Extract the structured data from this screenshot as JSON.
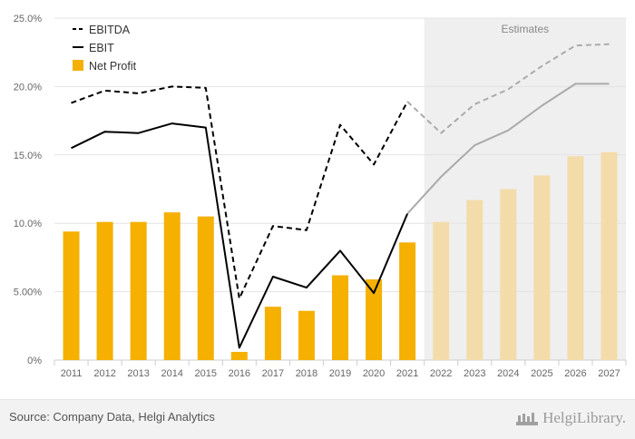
{
  "chart_data": {
    "type": "bar",
    "title": "",
    "xlabel": "",
    "ylabel": "",
    "categories": [
      "2011",
      "2012",
      "2013",
      "2014",
      "2015",
      "2016",
      "2017",
      "2018",
      "2019",
      "2020",
      "2021",
      "2022",
      "2023",
      "2024",
      "2025",
      "2026",
      "2027"
    ],
    "estimates_from_index": 11,
    "ylim": [
      0,
      25
    ],
    "yticks": [
      0,
      5,
      10,
      15,
      20,
      25
    ],
    "ytick_labels": [
      "0%",
      "5.00%",
      "10.0%",
      "15.0%",
      "20.0%",
      "25.0%"
    ],
    "grid": true,
    "legend_position": "top-left",
    "estimates_label": "Estimates",
    "series": [
      {
        "name": "EBITDA",
        "kind": "line",
        "style": "dashed",
        "color": "#000000",
        "estimate_color": "#aaaaaa",
        "values": [
          18.8,
          19.7,
          19.5,
          20.0,
          19.9,
          4.5,
          9.8,
          9.5,
          17.2,
          14.3,
          18.9,
          16.6,
          18.7,
          19.8,
          21.5,
          23.0,
          23.1
        ]
      },
      {
        "name": "EBIT",
        "kind": "line",
        "style": "solid",
        "color": "#000000",
        "estimate_color": "#aaaaaa",
        "values": [
          15.5,
          16.7,
          16.6,
          17.3,
          17.0,
          0.9,
          6.1,
          5.3,
          8.0,
          4.9,
          10.7,
          13.4,
          15.7,
          16.8,
          18.6,
          20.2,
          20.2
        ]
      },
      {
        "name": "Net Profit",
        "kind": "bar",
        "color": "#f5b000",
        "estimate_color": "#f3dcaa",
        "values": [
          9.4,
          10.1,
          10.1,
          10.8,
          10.5,
          0.6,
          3.9,
          3.6,
          6.2,
          5.9,
          8.6,
          10.1,
          11.7,
          12.5,
          13.5,
          14.9,
          15.2
        ]
      }
    ]
  },
  "footer": {
    "source": "Source: Company Data, Helgi Analytics",
    "brand": "HelgiLibrary."
  },
  "colors": {
    "estimate_band": "#efefef",
    "grid": "#e3e3e3",
    "axis": "#cccccc"
  }
}
